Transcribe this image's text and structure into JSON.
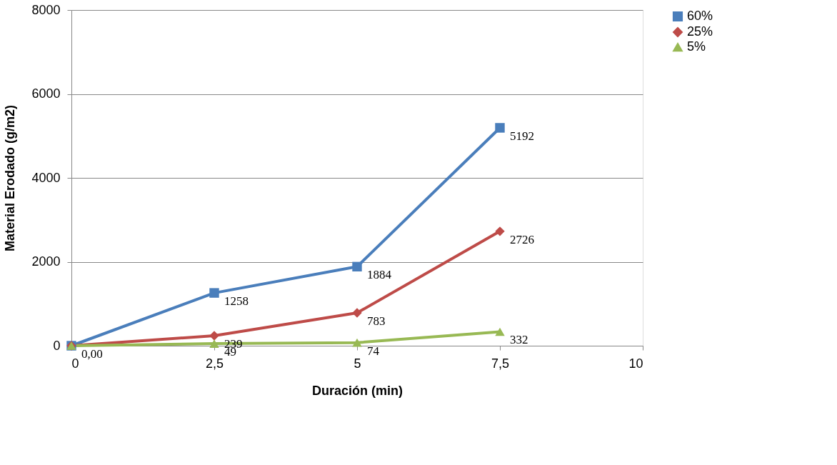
{
  "chart_data": {
    "type": "line",
    "xlabel": "Duración (min)",
    "ylabel": "Material Erodado (g/m2)",
    "x": [
      0,
      2.5,
      5,
      7.5
    ],
    "series": [
      {
        "name": "60%",
        "color": "#4a7ebb",
        "marker": "square",
        "values": [
          0,
          1258,
          1884,
          5192
        ],
        "value_labels": [
          "0,00",
          "1258",
          "1884",
          "5192"
        ]
      },
      {
        "name": "25%",
        "color": "#be4b48",
        "marker": "diamond",
        "values": [
          0,
          239,
          783,
          2726
        ],
        "value_labels": [
          null,
          "239",
          "783",
          "2726"
        ]
      },
      {
        "name": "5%",
        "color": "#98b954",
        "marker": "triangle",
        "values": [
          0,
          49,
          74,
          332
        ],
        "value_labels": [
          null,
          "49",
          "74",
          "332"
        ]
      }
    ],
    "xlim": [
      0,
      10
    ],
    "xticks": [
      0,
      {
        "value": 2.5,
        "label": "2,5"
      },
      5,
      {
        "value": 7.5,
        "label": "7,5"
      },
      10
    ],
    "ylim": [
      0,
      8000
    ],
    "yticks": [
      0,
      2000,
      4000,
      6000,
      8000
    ],
    "grid": "y",
    "legend": "right",
    "line_style": "solid"
  }
}
